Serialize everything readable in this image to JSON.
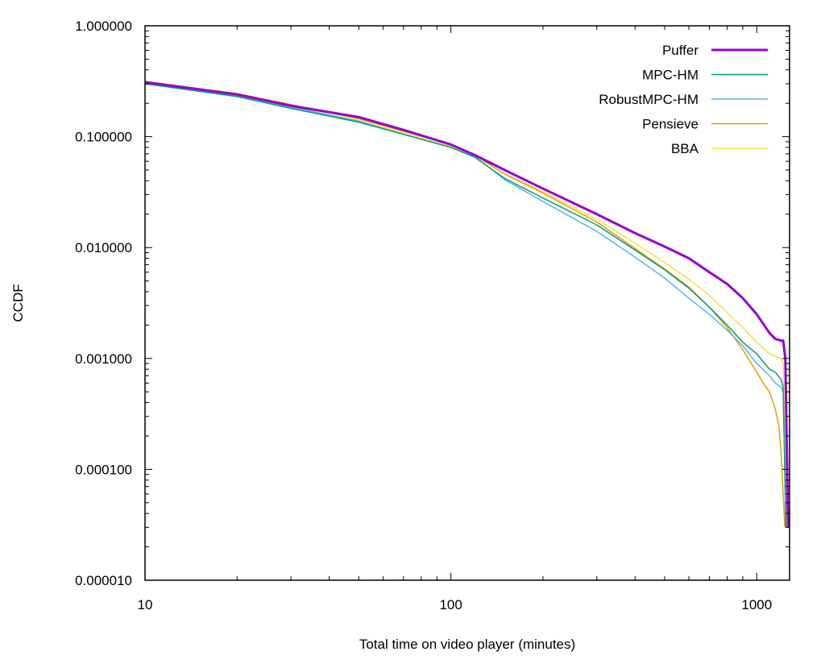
{
  "chart_data": {
    "type": "line",
    "title": "",
    "xlabel": "Total time on video player (minutes)",
    "ylabel": "CCDF",
    "xscale": "log",
    "yscale": "log",
    "xlim": [
      10,
      1280
    ],
    "ylim": [
      1e-05,
      1
    ],
    "x_ticks": [
      10,
      100,
      1000
    ],
    "x_tick_labels": [
      "10",
      "100",
      "1000"
    ],
    "y_ticks": [
      1e-05,
      0.0001,
      0.001,
      0.01,
      0.1,
      1
    ],
    "y_tick_labels": [
      "0.000010",
      "0.000100",
      "0.001000",
      "0.010000",
      "0.100000",
      "1.000000"
    ],
    "grid": false,
    "legend_position": "top-right",
    "series": [
      {
        "name": "Puffer",
        "color": "#9400d3",
        "x": [
          10,
          20,
          30,
          50,
          70,
          100,
          120,
          150,
          200,
          300,
          400,
          500,
          600,
          700,
          800,
          900,
          1000,
          1100,
          1150,
          1200,
          1220,
          1240,
          1255,
          1265
        ],
        "y": [
          0.31,
          0.24,
          0.19,
          0.15,
          0.115,
          0.085,
          0.068,
          0.05,
          0.034,
          0.02,
          0.0135,
          0.0102,
          0.008,
          0.006,
          0.0047,
          0.0035,
          0.0025,
          0.0017,
          0.0015,
          0.00145,
          0.00145,
          0.001,
          0.00013,
          3e-05
        ]
      },
      {
        "name": "MPC-HM",
        "color": "#009e73",
        "x": [
          10,
          20,
          30,
          50,
          70,
          100,
          120,
          150,
          200,
          300,
          400,
          500,
          600,
          700,
          800,
          900,
          1000,
          1100,
          1150,
          1200,
          1220,
          1235,
          1245
        ],
        "y": [
          0.3,
          0.23,
          0.18,
          0.135,
          0.105,
          0.08,
          0.065,
          0.042,
          0.028,
          0.016,
          0.0095,
          0.0063,
          0.0043,
          0.0029,
          0.002,
          0.0014,
          0.0011,
          0.0008,
          0.00075,
          0.00065,
          0.00055,
          0.0001,
          3e-05
        ]
      },
      {
        "name": "RobustMPC-HM",
        "color": "#56b4e9",
        "x": [
          10,
          20,
          30,
          50,
          70,
          100,
          120,
          150,
          200,
          300,
          400,
          500,
          600,
          700,
          800,
          900,
          1000,
          1100,
          1150,
          1200,
          1220,
          1235,
          1245
        ],
        "y": [
          0.3,
          0.235,
          0.185,
          0.138,
          0.105,
          0.08,
          0.066,
          0.041,
          0.026,
          0.014,
          0.0082,
          0.0053,
          0.0035,
          0.0025,
          0.0018,
          0.0013,
          0.0009,
          0.0007,
          0.0006,
          0.00055,
          0.0005,
          0.0001,
          3e-05
        ]
      },
      {
        "name": "Pensieve",
        "color": "#e69f00",
        "x": [
          10,
          20,
          30,
          50,
          70,
          100,
          120,
          150,
          200,
          300,
          400,
          500,
          600,
          700,
          800,
          900,
          1000,
          1050,
          1100,
          1150,
          1180,
          1200,
          1220,
          1235
        ],
        "y": [
          0.315,
          0.245,
          0.195,
          0.145,
          0.112,
          0.085,
          0.068,
          0.046,
          0.031,
          0.017,
          0.0098,
          0.0064,
          0.0044,
          0.0029,
          0.0019,
          0.0012,
          0.00075,
          0.0006,
          0.0005,
          0.00035,
          0.00025,
          0.00015,
          6e-05,
          3e-05
        ]
      },
      {
        "name": "BBA",
        "color": "#f0e442",
        "x": [
          10,
          20,
          30,
          50,
          70,
          100,
          120,
          150,
          200,
          300,
          400,
          500,
          600,
          700,
          800,
          900,
          1000,
          1100,
          1150,
          1200,
          1220,
          1235,
          1245
        ],
        "y": [
          0.305,
          0.235,
          0.185,
          0.14,
          0.108,
          0.082,
          0.067,
          0.046,
          0.032,
          0.018,
          0.011,
          0.0073,
          0.0052,
          0.0037,
          0.0026,
          0.0019,
          0.0014,
          0.0011,
          0.00105,
          0.001,
          0.0009,
          0.00015,
          3e-05
        ]
      }
    ]
  }
}
